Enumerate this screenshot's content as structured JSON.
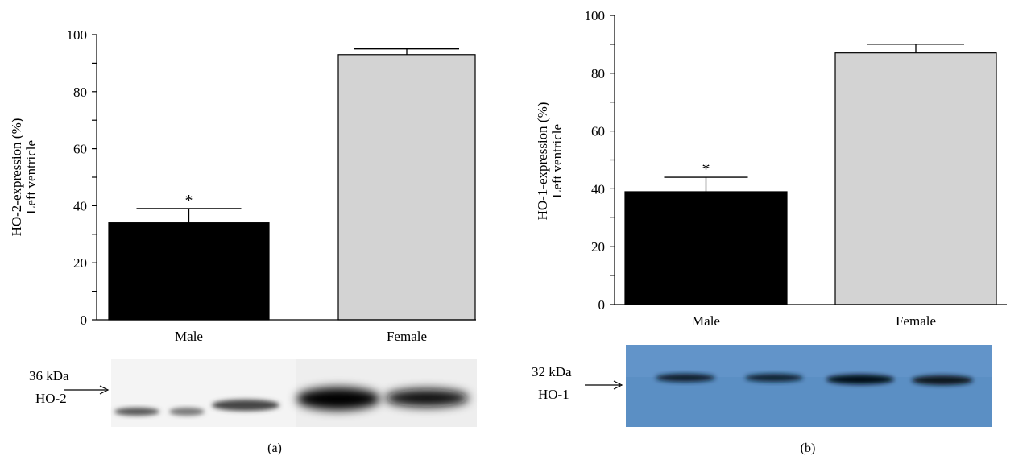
{
  "colors": {
    "male_bar": "#000000",
    "female_bar": "#d3d3d3",
    "blot_b_bg": "#5b8fc4"
  },
  "chart_data": [
    {
      "type": "bar",
      "panel": "(a)",
      "categories": [
        "Male",
        "Female"
      ],
      "values": [
        34,
        93
      ],
      "errors": [
        5,
        2
      ],
      "significance": [
        "*",
        ""
      ],
      "ylabel": [
        "HO-2-expression (%)",
        "Left ventricle"
      ],
      "ylim": [
        0,
        100
      ],
      "yticks": [
        "0",
        "20",
        "40",
        "60",
        "80",
        "100"
      ],
      "blot": {
        "label_top": "36 kDa",
        "label_bottom": "HO-2"
      }
    },
    {
      "type": "bar",
      "panel": "(b)",
      "categories": [
        "Male",
        "Female"
      ],
      "values": [
        39,
        87
      ],
      "errors": [
        5,
        3
      ],
      "significance": [
        "*",
        ""
      ],
      "ylabel": [
        "HO-1-expression (%)",
        "Left ventricle"
      ],
      "ylim": [
        0,
        100
      ],
      "yticks": [
        "0",
        "20",
        "40",
        "60",
        "80",
        "100"
      ],
      "blot": {
        "label_top": "32 kDa",
        "label_bottom": "HO-1"
      }
    }
  ]
}
